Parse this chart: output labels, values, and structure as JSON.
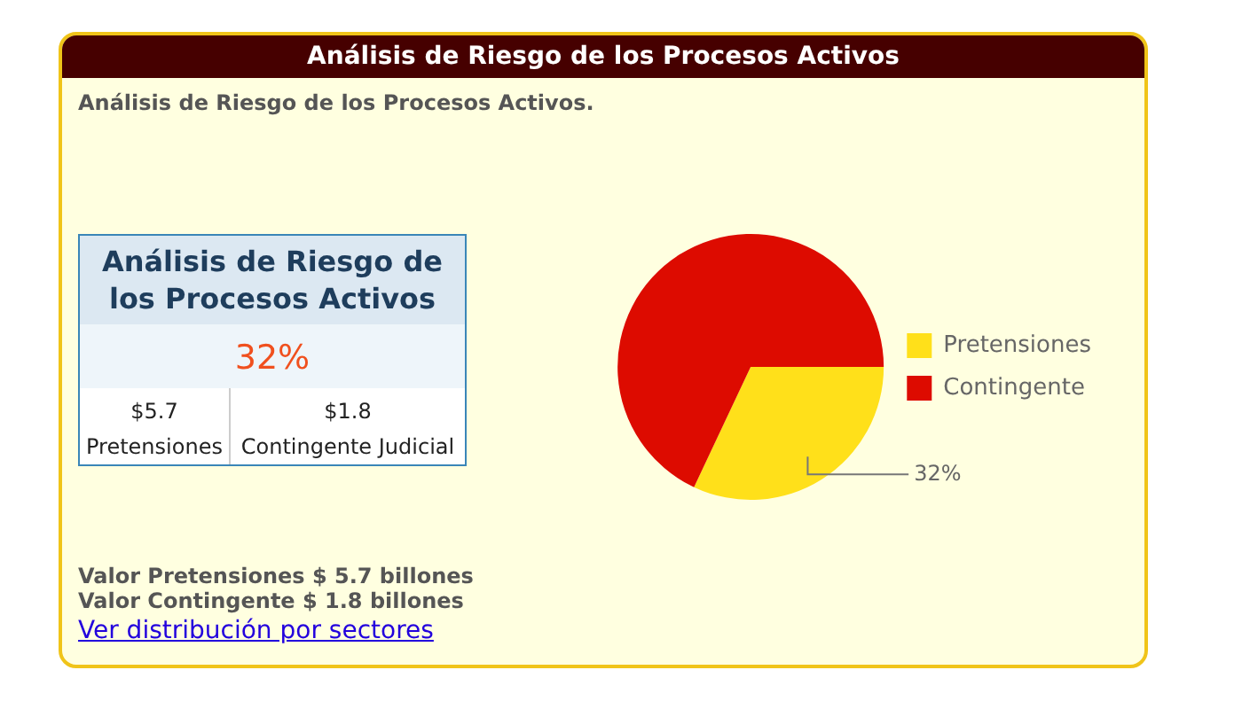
{
  "chart_data": [
    {
      "type": "pie",
      "title": "Análisis de Riesgo de los Procesos Activos",
      "subtitle": "Análisis de Riesgo de los Procesos Activos.",
      "categories": [
        "Pretensiones",
        "Contingente"
      ],
      "values": [
        32,
        68
      ],
      "colors": [
        "#ffe01a",
        "#dd0b00"
      ],
      "value_labels": [
        "32%",
        null
      ],
      "legend": "right",
      "annotations": [
        "Valor Pretensiones $ 5.7 billones",
        "Valor Contingente $ 1.8 billones",
        "Ver distribución por sectores"
      ]
    },
    {
      "type": "other",
      "title": "Análisis de Riesgo de los Procesos Activos",
      "annotations": [
        "32%",
        "$5.7",
        "$1.8",
        "Pretensiones",
        "Contingente Judicial"
      ]
    }
  ]
}
